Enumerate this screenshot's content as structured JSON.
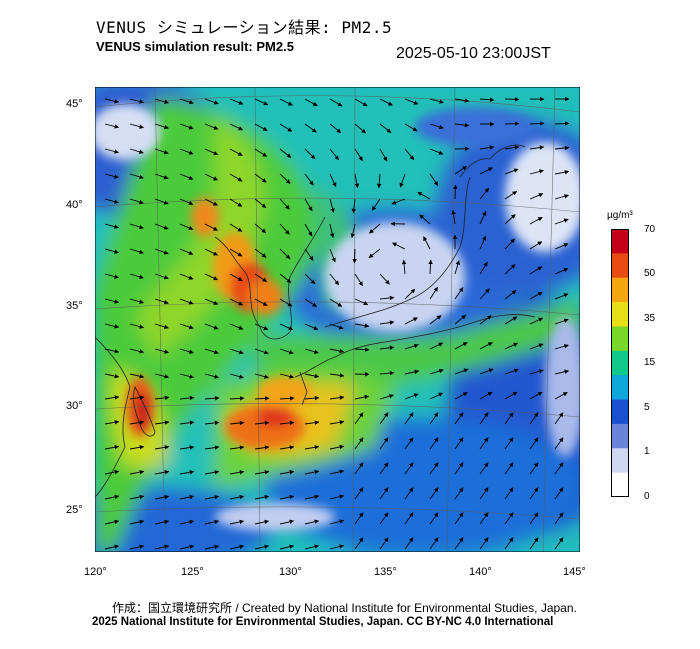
{
  "header": {
    "title_jp": "VENUS シミュレーション結果: PM2.5",
    "title_en": "VENUS simulation result: PM2.5",
    "timestamp": "2025-05-10 23:00JST"
  },
  "map": {
    "lon_ticks": [
      "120°",
      "125°",
      "130°",
      "135°",
      "140°",
      "145°"
    ],
    "lat_ticks": [
      "45°",
      "40°",
      "35°",
      "30°",
      "25°"
    ],
    "lon_range": [
      120,
      145
    ],
    "lat_range": [
      23,
      46
    ],
    "wind_field": "cyclone-over-sea-of-japan",
    "pollution_hotspots": [
      "Korean Peninsula west coast",
      "East China Sea near Okinawa",
      "Taiwan strait / Fujian coast"
    ]
  },
  "colorbar": {
    "unit": "µg/m³",
    "ticks": [
      "70",
      "50",
      "35",
      "15",
      "5",
      "1",
      "0"
    ],
    "colors": [
      "#c4001a",
      "#e84a12",
      "#f4a60f",
      "#e8df16",
      "#7ad628",
      "#10c88a",
      "#0fa8d8",
      "#1a4fd0",
      "#6a85d8",
      "#cdd8f2",
      "#ffffff"
    ]
  },
  "footer": {
    "credit_jp_en": "作成：国立環境研究所 / Created by National Institute for Environmental Studies, Japan.",
    "copyright": "2025 National Institute for Environmental Studies, Japan. CC BY-NC 4.0 International"
  }
}
